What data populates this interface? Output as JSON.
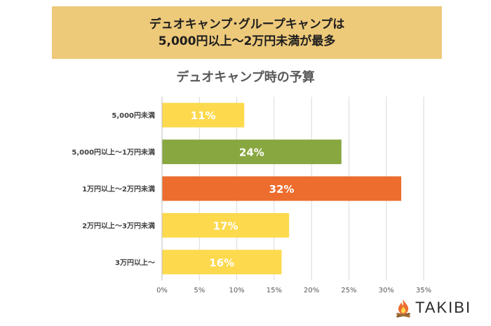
{
  "banner": {
    "line1": "デュオキャンプ･グループキャンプは",
    "line2": "5,000円以上〜2万円未満が最多"
  },
  "brand": {
    "name": "TAKIBI"
  },
  "chart_data": {
    "type": "bar",
    "orientation": "horizontal",
    "title": "デュオキャンプ時の予算",
    "categories": [
      "5,000円未満",
      "5,000円以上〜1万円未満",
      "1万円以上〜2万円未満",
      "2万円以上〜3万円未満",
      "3万円以上〜"
    ],
    "values": [
      11,
      24,
      32,
      17,
      16
    ],
    "data_labels": [
      "11%",
      "24%",
      "32%",
      "17%",
      "16%"
    ],
    "colors": [
      "#fdd94e",
      "#88a740",
      "#ec6d2e",
      "#fdd94e",
      "#fdd94e"
    ],
    "xlim": [
      0,
      35
    ],
    "xticks": [
      "0%",
      "5%",
      "10%",
      "15%",
      "20%",
      "25%",
      "30%",
      "35%"
    ],
    "xlabel": "",
    "ylabel": "",
    "grid": true
  }
}
